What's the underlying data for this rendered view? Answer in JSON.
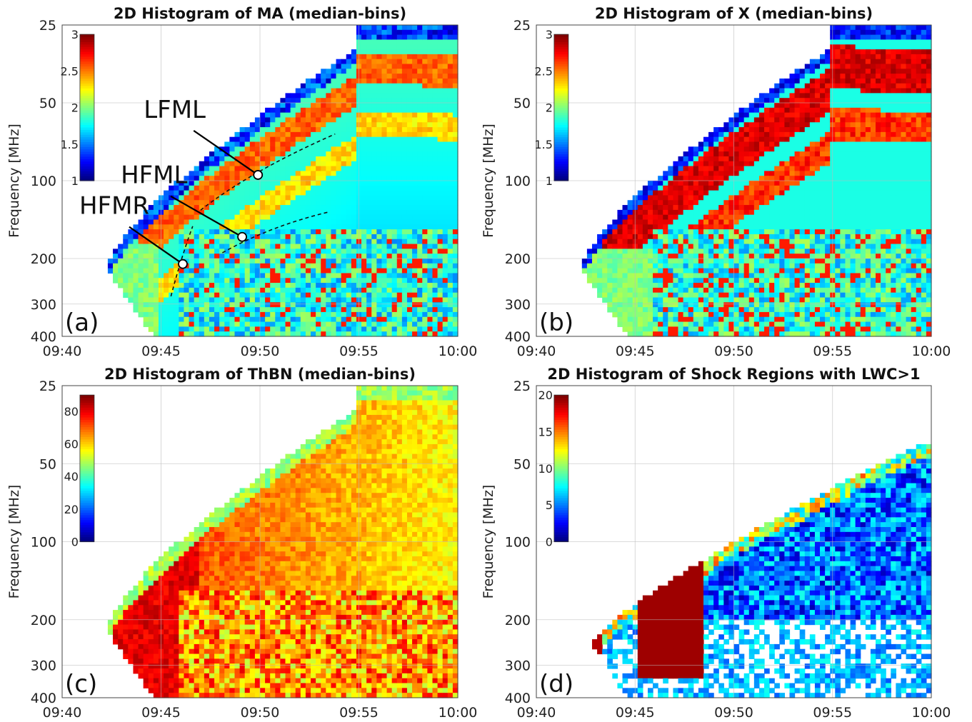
{
  "chart_data": [
    {
      "type": "heatmap",
      "title": "2D Histogram of MA (median-bins)",
      "panel_label": "(a)",
      "ylabel": "Frequency [MHz]",
      "xlabel": "",
      "x_ticks": [
        "09:40",
        "09:45",
        "09:50",
        "09:55",
        "10:00"
      ],
      "y_ticks": [
        "25",
        "50",
        "100",
        "200",
        "300",
        "400"
      ],
      "y_tick_values": [
        25,
        50,
        100,
        200,
        300,
        400
      ],
      "x_range_minutes": [
        0,
        20
      ],
      "y_scale": "log",
      "y_reversed": true,
      "colorbar": {
        "ticks": [
          "1",
          "1.5",
          "2",
          "2.5",
          "3"
        ],
        "range": [
          1,
          3
        ],
        "colormap": "jet",
        "placement": "top-left"
      },
      "annotations": [
        {
          "text": "LFML",
          "time_min": 9.9,
          "freq_mhz": 95
        },
        {
          "text": "HFML",
          "time_min": 9.1,
          "freq_mhz": 165
        },
        {
          "text": "HFMR",
          "time_min": 6.1,
          "freq_mhz": 210
        }
      ],
      "grid": true
    },
    {
      "type": "heatmap",
      "title": "2D Histogram of X (median-bins)",
      "panel_label": "(b)",
      "ylabel": "Frequency [MHz]",
      "xlabel": "",
      "x_ticks": [
        "09:40",
        "09:45",
        "09:50",
        "09:55",
        "10:00"
      ],
      "y_ticks": [
        "25",
        "50",
        "100",
        "200",
        "300",
        "400"
      ],
      "y_tick_values": [
        25,
        50,
        100,
        200,
        300,
        400
      ],
      "x_range_minutes": [
        0,
        20
      ],
      "y_scale": "log",
      "y_reversed": true,
      "colorbar": {
        "ticks": [
          "1",
          "1.5",
          "2",
          "2.5",
          "3"
        ],
        "range": [
          1,
          3
        ],
        "colormap": "jet",
        "placement": "top-left"
      },
      "grid": true
    },
    {
      "type": "heatmap",
      "title": "2D Histogram of ThBN (median-bins)",
      "panel_label": "(c)",
      "ylabel": "Frequency [MHz]",
      "xlabel": "",
      "x_ticks": [
        "09:40",
        "09:45",
        "09:50",
        "09:55",
        "10:00"
      ],
      "y_ticks": [
        "25",
        "50",
        "100",
        "200",
        "300",
        "400"
      ],
      "y_tick_values": [
        25,
        50,
        100,
        200,
        300,
        400
      ],
      "x_range_minutes": [
        0,
        20
      ],
      "y_scale": "log",
      "y_reversed": true,
      "colorbar": {
        "ticks": [
          "0",
          "20",
          "40",
          "60",
          "80"
        ],
        "range": [
          0,
          90
        ],
        "colormap": "jet",
        "placement": "top-left"
      },
      "grid": true
    },
    {
      "type": "heatmap",
      "title": "2D Histogram of Shock Regions with LWC>1",
      "panel_label": "(d)",
      "ylabel": "Frequency [MHz]",
      "xlabel": "",
      "x_ticks": [
        "09:40",
        "09:45",
        "09:50",
        "09:55",
        "10:00"
      ],
      "y_ticks": [
        "25",
        "50",
        "100",
        "200",
        "300",
        "400"
      ],
      "y_tick_values": [
        25,
        50,
        100,
        200,
        300,
        400
      ],
      "x_range_minutes": [
        0,
        20
      ],
      "y_scale": "log",
      "y_reversed": true,
      "colorbar": {
        "ticks": [
          "0",
          "5",
          "10",
          "15",
          "20"
        ],
        "range": [
          0,
          20
        ],
        "colormap": "jet",
        "placement": "top-left"
      },
      "grid": true
    }
  ]
}
